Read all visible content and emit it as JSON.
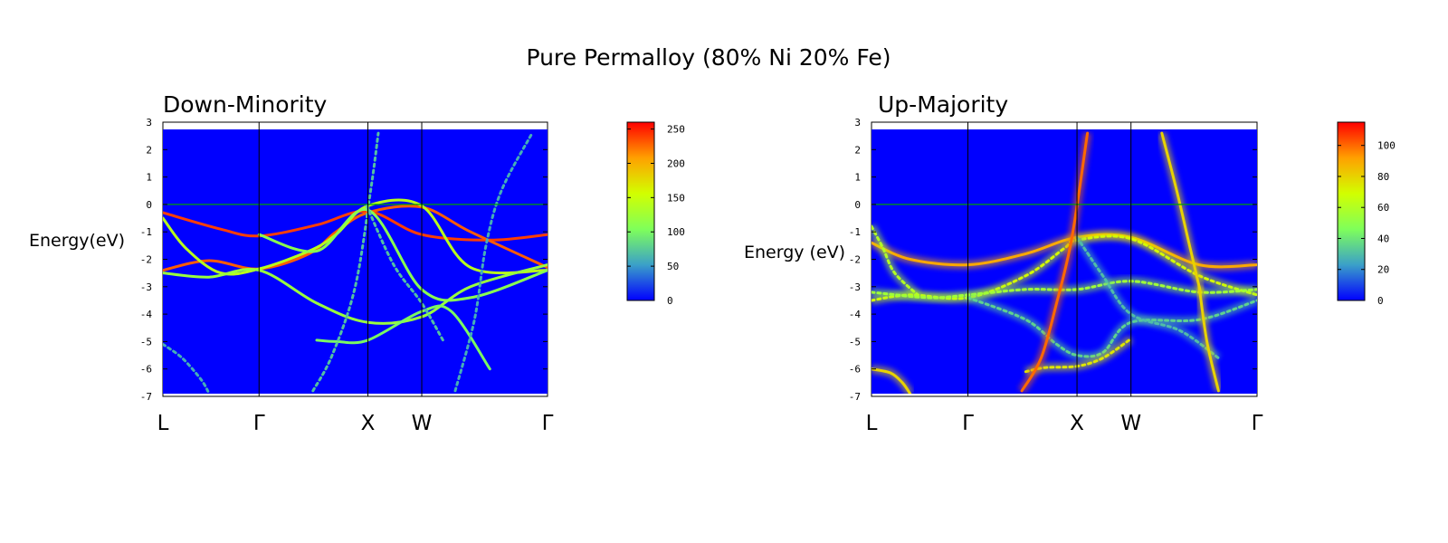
{
  "figure_title": "Pure Permalloy (80% Ni 20% Fe)",
  "colors": {
    "background": "#0000ff",
    "fermi_line": "#00a000",
    "colormap": [
      "#0000ff",
      "#3ba0c8",
      "#7fff5a",
      "#d2ff00",
      "#ffa000",
      "#ff0000"
    ]
  },
  "chart_data": [
    {
      "type": "heatmap",
      "title": "Down-Minority",
      "ylabel": "Energy(eV)",
      "xlabel": "",
      "x_labels": [
        "L",
        "Γ",
        "X",
        "W",
        "Γ"
      ],
      "x_label_positions": [
        0,
        0.25,
        0.533,
        0.673,
        1.0
      ],
      "ylim": [
        -7,
        3
      ],
      "yticks": [
        3,
        2,
        1,
        0,
        -1,
        -2,
        -3,
        -4,
        -5,
        -6,
        -7
      ],
      "fermi_level": 0,
      "colorbar": {
        "min": 0,
        "max": 260,
        "ticks": [
          0,
          50,
          100,
          150,
          200,
          250
        ]
      },
      "bands": [
        {
          "x": [
            0,
            0.15,
            0.25,
            0.4,
            0.533,
            0.673,
            0.85,
            1.0
          ],
          "y": [
            -0.3,
            -0.9,
            -1.15,
            -0.75,
            -0.25,
            -1.1,
            -1.3,
            -1.1
          ],
          "intensity": 240
        },
        {
          "x": [
            0,
            0.12,
            0.25,
            0.38,
            0.45,
            0.533,
            0.673,
            0.8,
            1.0
          ],
          "y": [
            -2.4,
            -2.05,
            -2.35,
            -1.8,
            -1.0,
            -0.3,
            -0.1,
            -1.0,
            -2.3
          ],
          "intensity": 230
        },
        {
          "x": [
            0,
            0.06,
            0.15,
            0.25,
            0.38,
            0.45,
            0.533,
            0.673,
            0.8,
            1.0
          ],
          "y": [
            -0.5,
            -1.6,
            -2.5,
            -2.35,
            -1.7,
            -1.1,
            -0.05,
            -0.05,
            -2.3,
            -2.4
          ],
          "intensity": 140
        },
        {
          "x": [
            0,
            0.12,
            0.25,
            0.4,
            0.533,
            0.673,
            0.8,
            1.0
          ],
          "y": [
            -2.5,
            -2.65,
            -2.4,
            -3.6,
            -4.3,
            -4.1,
            -3.0,
            -2.2
          ],
          "intensity": 120
        },
        {
          "x": [
            0.25,
            0.4,
            0.533,
            0.673,
            0.8,
            1.0
          ],
          "y": [
            -1.1,
            -1.7,
            -0.2,
            -3.1,
            -3.4,
            -2.4
          ],
          "intensity": 110
        },
        {
          "x": [
            0.4,
            0.45,
            0.533,
            0.673,
            0.75,
            0.85
          ],
          "y": [
            -4.95,
            -5.0,
            -4.95,
            -3.9,
            -3.9,
            -6.0
          ],
          "intensity": 100
        },
        {
          "x": [
            0,
            0.05,
            0.1,
            0.12
          ],
          "y": [
            -5.1,
            -5.6,
            -6.4,
            -6.9
          ],
          "intensity": 60
        },
        {
          "x": [
            0.39,
            0.44,
            0.5,
            0.54,
            0.56
          ],
          "y": [
            -6.8,
            -5.5,
            -3.0,
            0.5,
            2.6
          ],
          "intensity": 70
        },
        {
          "x": [
            0.53,
            0.6,
            0.673,
            0.73
          ],
          "y": [
            -0.05,
            -2.2,
            -3.6,
            -5.0
          ],
          "intensity": 70
        },
        {
          "x": [
            0.76,
            0.81,
            0.84,
            0.88,
            0.96
          ],
          "y": [
            -6.8,
            -4.2,
            -1.5,
            0.5,
            2.6
          ],
          "intensity": 60
        }
      ]
    },
    {
      "type": "heatmap",
      "title": "Up-Majority",
      "ylabel": "Energy (eV)",
      "xlabel": "",
      "x_labels": [
        "L",
        "Γ",
        "X",
        "W",
        "Γ"
      ],
      "x_label_positions": [
        0,
        0.25,
        0.533,
        0.673,
        1.0
      ],
      "ylim": [
        -7,
        3
      ],
      "yticks": [
        3,
        2,
        1,
        0,
        -1,
        -2,
        -3,
        -4,
        -5,
        -6,
        -7
      ],
      "fermi_level": 0,
      "colorbar": {
        "min": 0,
        "max": 115,
        "ticks": [
          0,
          20,
          40,
          60,
          80,
          100
        ]
      },
      "bands": [
        {
          "x": [
            0,
            0.1,
            0.25,
            0.4,
            0.533,
            0.673,
            0.85,
            1.0
          ],
          "y": [
            -1.4,
            -2.0,
            -2.2,
            -1.8,
            -1.2,
            -1.2,
            -2.2,
            -2.2
          ],
          "intensity": 90
        },
        {
          "x": [
            0,
            0.1,
            0.25,
            0.4,
            0.5,
            0.533,
            0.673,
            0.85,
            1.0
          ],
          "y": [
            -3.5,
            -3.3,
            -3.4,
            -2.6,
            -1.6,
            -1.3,
            -1.25,
            -2.6,
            -3.3
          ],
          "intensity": 70
        },
        {
          "x": [
            0,
            0.15,
            0.25,
            0.4,
            0.533,
            0.673,
            0.85,
            1.0
          ],
          "y": [
            -3.2,
            -3.4,
            -3.3,
            -3.1,
            -3.1,
            -2.8,
            -3.2,
            -3.1
          ],
          "intensity": 55
        },
        {
          "x": [
            0.25,
            0.4,
            0.48,
            0.533,
            0.6,
            0.673,
            0.85,
            1.0
          ],
          "y": [
            -3.4,
            -4.2,
            -5.1,
            -5.5,
            -5.4,
            -4.3,
            -4.2,
            -3.5
          ],
          "intensity": 35
        },
        {
          "x": [
            0.533,
            0.6,
            0.673,
            0.8,
            0.9
          ],
          "y": [
            -1.2,
            -2.6,
            -4.0,
            -4.6,
            -5.6
          ],
          "intensity": 30
        },
        {
          "x": [
            0.4,
            0.45,
            0.533,
            0.6,
            0.673
          ],
          "y": [
            -6.1,
            -5.95,
            -5.9,
            -5.6,
            -4.9
          ],
          "intensity": 75
        },
        {
          "x": [
            0,
            0.05,
            0.08,
            0.1
          ],
          "y": [
            -6.0,
            -6.15,
            -6.5,
            -6.9
          ],
          "intensity": 80
        },
        {
          "x": [
            0,
            0.03,
            0.06,
            0.12
          ],
          "y": [
            -0.8,
            -1.6,
            -2.5,
            -3.3
          ],
          "intensity": 60
        },
        {
          "x": [
            0.39,
            0.44,
            0.48,
            0.52,
            0.56
          ],
          "y": [
            -6.8,
            -5.6,
            -3.6,
            -1.2,
            2.6
          ],
          "intensity": 100
        },
        {
          "x": [
            0.753,
            0.79,
            0.82,
            0.85,
            0.85
          ],
          "y": [
            2.6,
            0.6,
            -1.2,
            -3.0,
            -3.0
          ],
          "intensity": 80
        },
        {
          "x": [
            0.85,
            0.87,
            0.9
          ],
          "y": [
            -3.0,
            -5.0,
            -6.8
          ],
          "intensity": 80
        }
      ]
    }
  ]
}
